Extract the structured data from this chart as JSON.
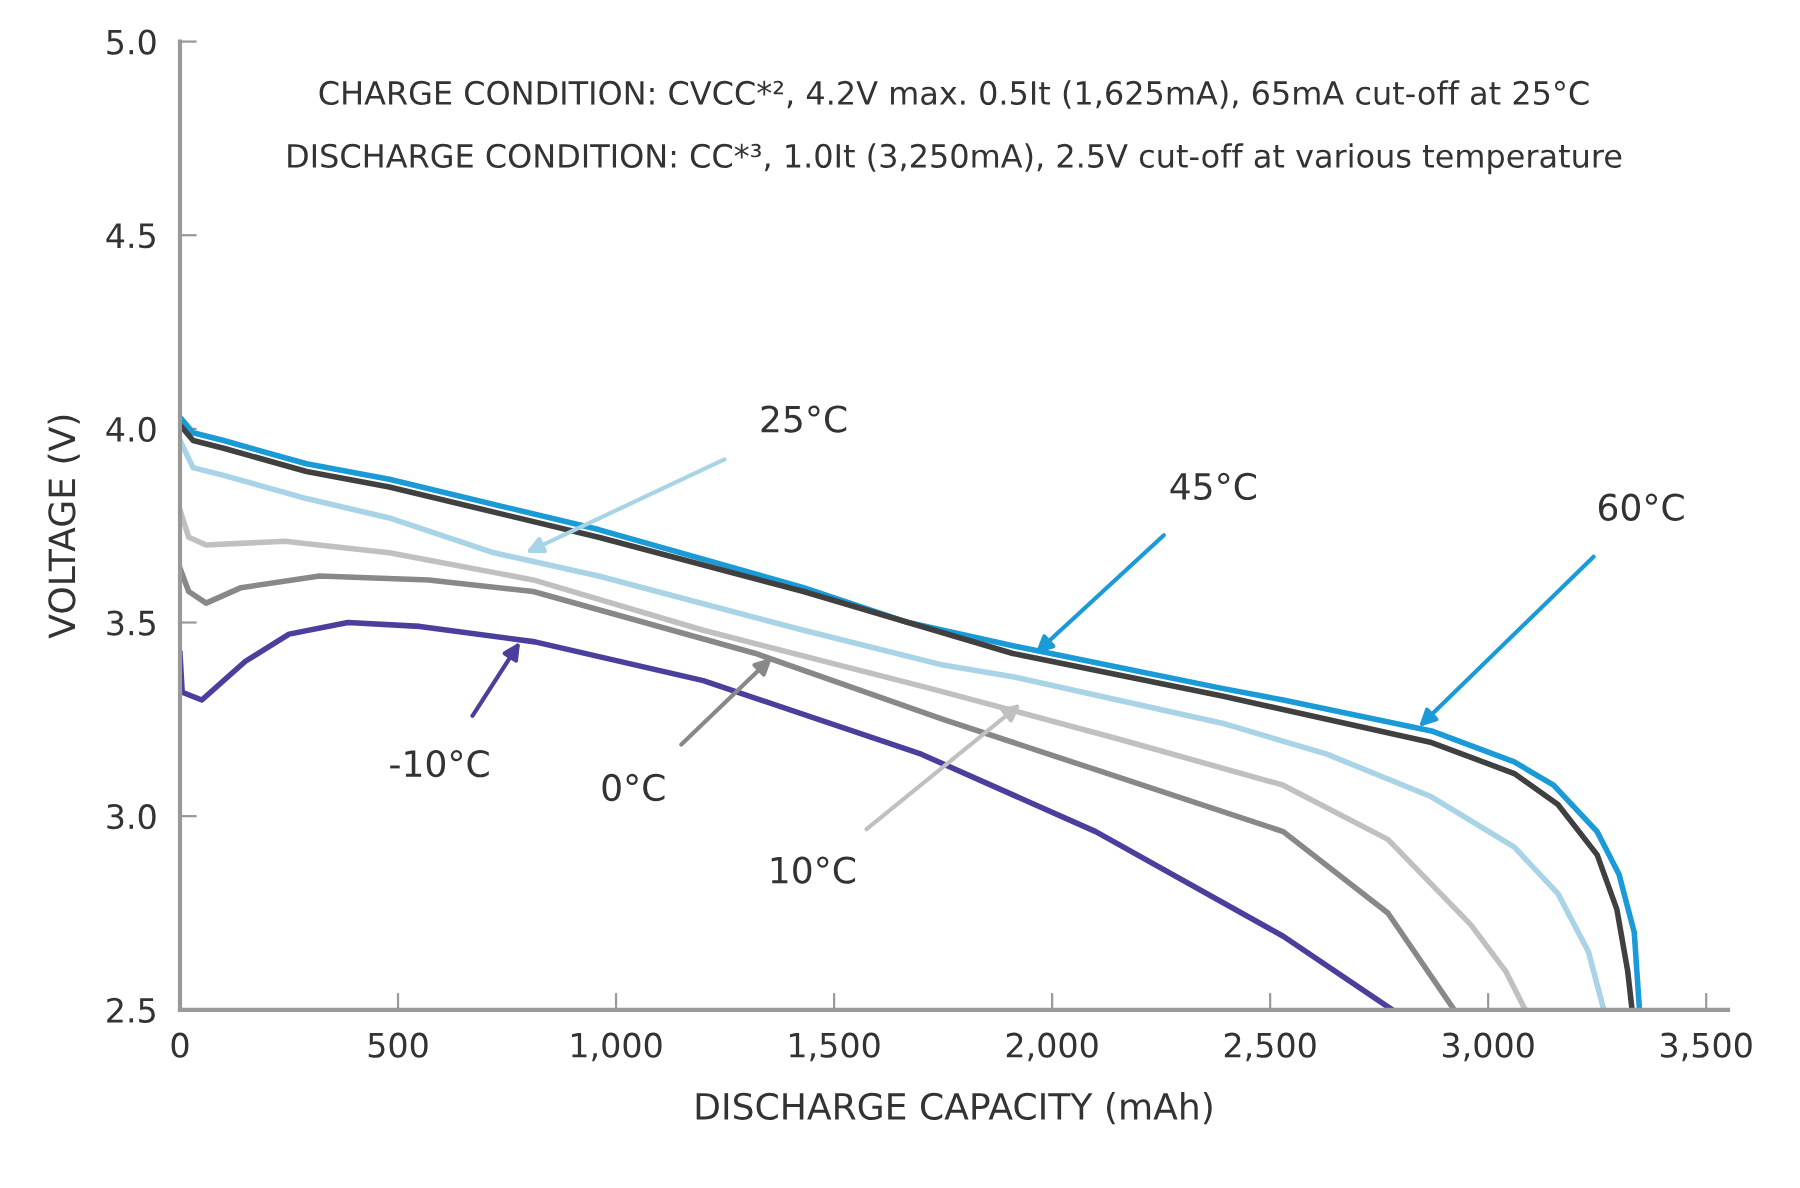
{
  "chart_data": {
    "type": "line",
    "xlabel": "DISCHARGE CAPACITY (mAh)",
    "ylabel": "VOLTAGE (V)",
    "xlim": [
      0,
      3550
    ],
    "ylim": [
      2.5,
      5.0
    ],
    "xticks": [
      0,
      500,
      {
        "value": 1000,
        "label": "1,000"
      },
      {
        "value": 1500,
        "label": "1,500"
      },
      {
        "value": 2000,
        "label": "2,000"
      },
      {
        "value": 2500,
        "label": "2,500"
      },
      {
        "value": 3000,
        "label": "3,000"
      },
      {
        "value": 3500,
        "label": "3,500"
      }
    ],
    "yticks": [
      {
        "value": 2.5,
        "label": "2.5"
      },
      {
        "value": 3.0,
        "label": "3.0"
      },
      {
        "value": 3.5,
        "label": "3.5"
      },
      {
        "value": 4.0,
        "label": "4.0"
      },
      {
        "value": 4.5,
        "label": "4.5"
      },
      {
        "value": 5.0,
        "label": "5.0"
      }
    ],
    "grid": false,
    "legend": false,
    "marker": "none",
    "line_style": "solid",
    "series": [
      {
        "color": "#1a9ad6",
        "x": [
          0,
          30,
          100,
          290,
          480,
          960,
          1430,
          1670,
          1910,
          2390,
          2530,
          2870,
          3060,
          3150,
          3250,
          3300,
          3335,
          3347
        ],
        "values": [
          4.03,
          3.99,
          3.97,
          3.91,
          3.87,
          3.74,
          3.59,
          3.5,
          3.44,
          3.33,
          3.3,
          3.22,
          3.14,
          3.08,
          2.96,
          2.85,
          2.7,
          2.5
        ]
      },
      {
        "color": "#404040",
        "x": [
          0,
          30,
          100,
          290,
          480,
          960,
          1430,
          1910,
          2390,
          2870,
          3060,
          3160,
          3250,
          3295,
          3320,
          3330
        ],
        "values": [
          4.01,
          3.97,
          3.95,
          3.89,
          3.85,
          3.72,
          3.58,
          3.42,
          3.31,
          3.19,
          3.11,
          3.03,
          2.9,
          2.76,
          2.6,
          2.5
        ]
      },
      {
        "color": "#a9d3e6",
        "x": [
          0,
          30,
          100,
          290,
          480,
          720,
          960,
          1430,
          1750,
          1910,
          2390,
          2630,
          2870,
          3060,
          3160,
          3230,
          3265
        ],
        "values": [
          3.97,
          3.9,
          3.88,
          3.82,
          3.77,
          3.68,
          3.62,
          3.48,
          3.39,
          3.36,
          3.24,
          3.16,
          3.05,
          2.92,
          2.8,
          2.65,
          2.5
        ]
      },
      {
        "color": "#c0c0c0",
        "x": [
          0,
          20,
          60,
          240,
          480,
          810,
          1200,
          1720,
          2150,
          2530,
          2770,
          2960,
          3040,
          3085
        ],
        "values": [
          3.79,
          3.72,
          3.7,
          3.71,
          3.68,
          3.61,
          3.48,
          3.33,
          3.2,
          3.08,
          2.94,
          2.72,
          2.6,
          2.5
        ]
      },
      {
        "color": "#888888",
        "x": [
          0,
          20,
          60,
          140,
          320,
          570,
          810,
          1320,
          1750,
          2100,
          2530,
          2770,
          2922
        ],
        "values": [
          3.64,
          3.58,
          3.55,
          3.59,
          3.62,
          3.61,
          3.58,
          3.42,
          3.25,
          3.12,
          2.96,
          2.75,
          2.5
        ]
      },
      {
        "color": "#4b3f9e",
        "x": [
          0,
          5,
          50,
          150,
          250,
          385,
          550,
          814,
          1200,
          1700,
          2100,
          2530,
          2780
        ],
        "values": [
          3.42,
          3.32,
          3.3,
          3.4,
          3.47,
          3.5,
          3.49,
          3.45,
          3.35,
          3.16,
          2.96,
          2.69,
          2.5
        ]
      }
    ],
    "annotations": [
      "CHARGE CONDITION: CVCC*², 4.2V max. 0.5It (1,625mA), 65mA cut-off at 25°C",
      "DISCHARGE CONDITION: CC*³, 1.0It (3,250mA), 2.5V cut-off at various temperature",
      {
        "text": "25°C",
        "x": 793,
        "y": 3.68
      },
      {
        "text": "45°C",
        "x": 1962,
        "y": 3.42
      },
      {
        "text": "60°C",
        "x": 2841,
        "y": 3.23
      },
      {
        "text": "-10°C",
        "x": 780,
        "y": 3.45
      },
      {
        "text": "0°C",
        "x": 1358,
        "y": 3.41
      },
      {
        "text": "10°C",
        "x": 1928,
        "y": 3.29
      }
    ]
  }
}
